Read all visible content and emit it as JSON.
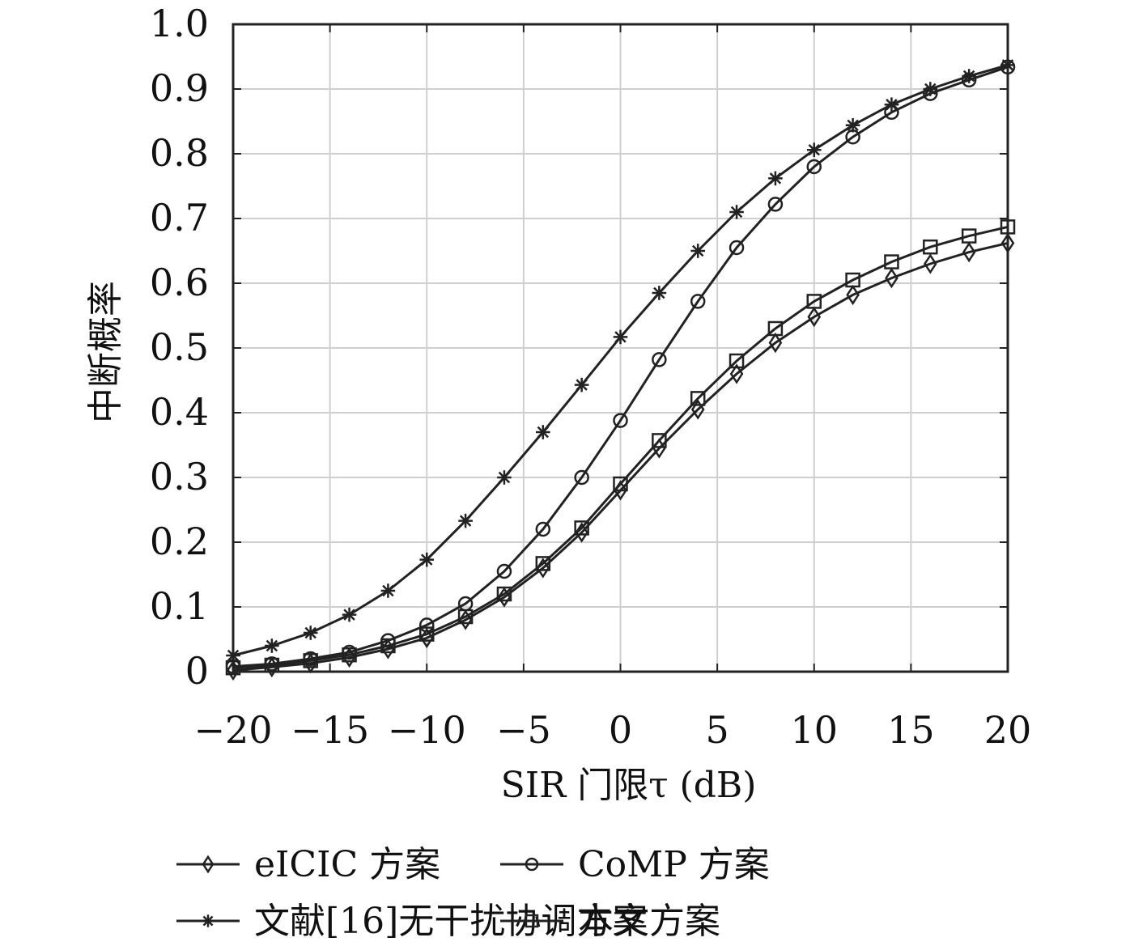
{
  "chart_data": {
    "type": "line",
    "xlabel": "SIR 门限τ (dB)",
    "ylabel": "中断概率",
    "xlim": [
      -20,
      20
    ],
    "ylim": [
      0,
      1.0
    ],
    "x_ticks": [
      "−20",
      "−15",
      "−10",
      "−5",
      "0",
      "5",
      "10",
      "15",
      "20"
    ],
    "y_ticks": [
      "0",
      "0.1",
      "0.2",
      "0.3",
      "0.4",
      "0.5",
      "0.6",
      "0.7",
      "0.8",
      "0.9",
      "1.0"
    ],
    "grid": true,
    "legend_position": "bottom",
    "x": [
      -20,
      -18,
      -16,
      -14,
      -12,
      -10,
      -8,
      -6,
      -4,
      -2,
      0,
      2,
      4,
      6,
      8,
      10,
      12,
      14,
      16,
      18,
      20
    ],
    "series": [
      {
        "name": "eICIC 方案",
        "marker": "diamond",
        "values": [
          0.002,
          0.007,
          0.013,
          0.022,
          0.035,
          0.052,
          0.08,
          0.115,
          0.16,
          0.215,
          0.28,
          0.345,
          0.405,
          0.46,
          0.508,
          0.548,
          0.582,
          0.608,
          0.63,
          0.648,
          0.662
        ]
      },
      {
        "name": "CoMP 方案",
        "marker": "circle",
        "values": [
          0.008,
          0.012,
          0.02,
          0.03,
          0.048,
          0.072,
          0.105,
          0.155,
          0.22,
          0.3,
          0.388,
          0.482,
          0.572,
          0.655,
          0.722,
          0.78,
          0.826,
          0.864,
          0.893,
          0.914,
          0.934
        ]
      },
      {
        "name": "文献[16]无干扰协调方案",
        "marker": "asterisk",
        "values": [
          0.025,
          0.04,
          0.06,
          0.088,
          0.125,
          0.173,
          0.233,
          0.3,
          0.37,
          0.443,
          0.517,
          0.585,
          0.65,
          0.71,
          0.762,
          0.806,
          0.844,
          0.876,
          0.9,
          0.92,
          0.937
        ]
      },
      {
        "name": "本文方案",
        "marker": "square",
        "values": [
          0.006,
          0.01,
          0.017,
          0.026,
          0.04,
          0.058,
          0.085,
          0.12,
          0.167,
          0.222,
          0.29,
          0.357,
          0.422,
          0.48,
          0.53,
          0.572,
          0.605,
          0.633,
          0.656,
          0.673,
          0.687
        ]
      }
    ]
  }
}
